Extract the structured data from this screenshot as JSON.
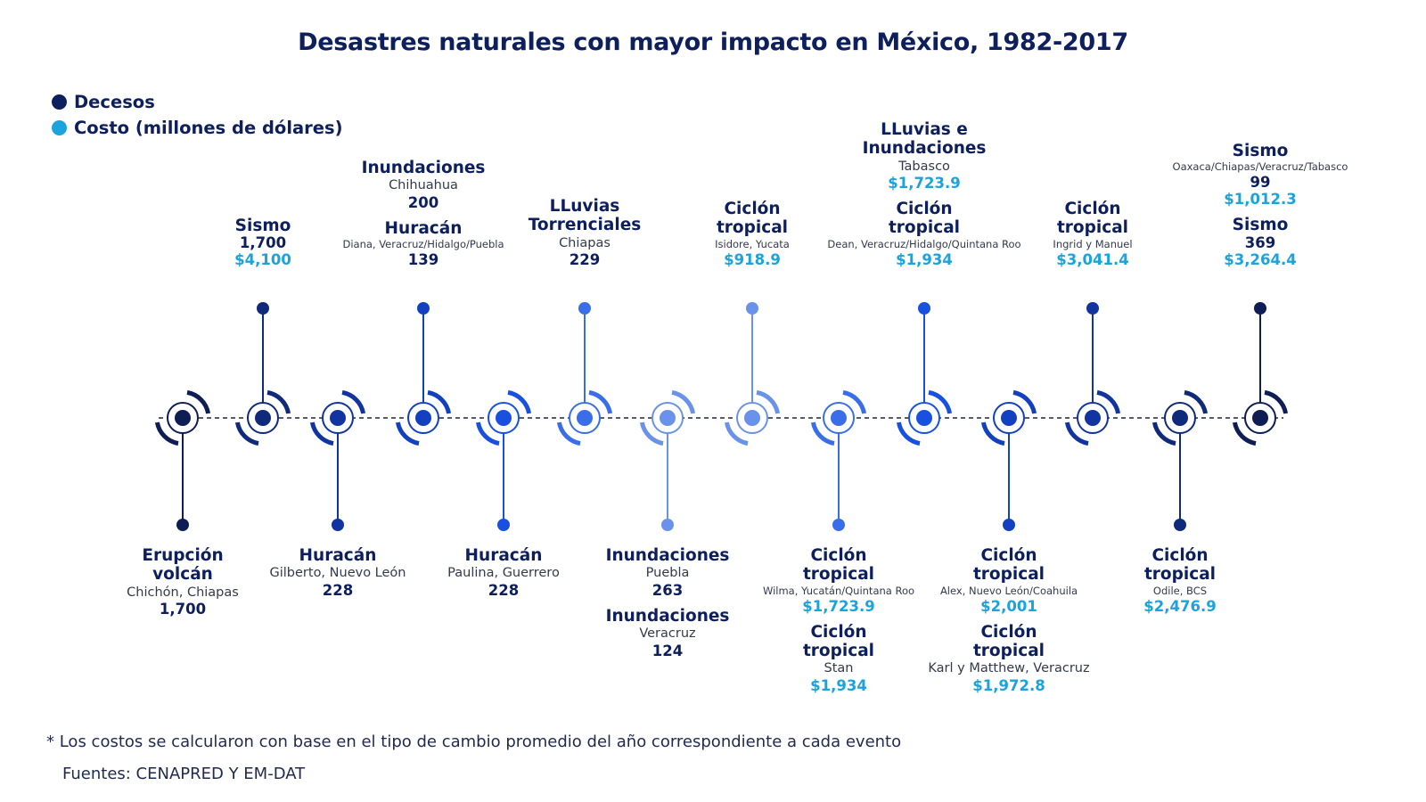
{
  "title": "Desastres naturales con mayor impacto en México, 1982-2017",
  "legend": [
    {
      "label": "Decesos",
      "color": "#0d1f5c"
    },
    {
      "label": "Costo (millones de dólares)",
      "color": "#1aa3dc"
    }
  ],
  "colors": {
    "death_text": "#0d1f5c",
    "cost_text": "#1aa3dc",
    "axis": "#555b6e"
  },
  "events": [
    {
      "side": "below",
      "color": "#0e1d54",
      "entries": [
        {
          "type": "Erupción\nvolcán",
          "place": "Chichón, Chiapas",
          "deaths": "1,700"
        }
      ]
    },
    {
      "side": "above",
      "color": "#0f2a7a",
      "entries": [
        {
          "type": "Sismo",
          "deaths": "1,700",
          "cost": "$4,100"
        }
      ]
    },
    {
      "side": "below",
      "color": "#1234a0",
      "entries": [
        {
          "type": "Huracán",
          "place": "Gilberto, Nuevo León",
          "deaths": "228"
        }
      ]
    },
    {
      "side": "above",
      "color": "#1340c0",
      "entries": [
        {
          "type": "Inundaciones",
          "place": "Chihuahua",
          "deaths": "200"
        },
        {
          "type": "Huracán",
          "place": "Diana, Veracruz/Hidalgo/Puebla",
          "place_small": true,
          "deaths": "139"
        }
      ]
    },
    {
      "side": "below",
      "color": "#1850e0",
      "entries": [
        {
          "type": "Huracán",
          "place": "Paulina, Guerrero",
          "deaths": "228"
        }
      ]
    },
    {
      "side": "above",
      "color": "#3a6ee8",
      "entries": [
        {
          "type": "LLuvias\nTorrenciales",
          "place": "Chiapas",
          "deaths": "229"
        }
      ]
    },
    {
      "side": "below",
      "color": "#6a92ea",
      "entries": [
        {
          "type": "Inundaciones",
          "place": "Puebla",
          "deaths": "263"
        },
        {
          "type": "Inundaciones",
          "place": "Veracruz",
          "deaths": "124"
        }
      ]
    },
    {
      "side": "above",
      "color": "#6a92ea",
      "entries": [
        {
          "type": "Ciclón\ntropical",
          "place": "Isidore, Yucata",
          "place_small": true,
          "cost": "$918.9"
        }
      ]
    },
    {
      "side": "below",
      "color": "#3a6ee8",
      "entries": [
        {
          "type": "Ciclón\ntropical",
          "place": "Wilma, Yucatán/Quintana Roo",
          "place_small": true,
          "cost": "$1,723.9"
        },
        {
          "type": "Ciclón\ntropical",
          "place": "Stan",
          "cost": "$1,934"
        }
      ]
    },
    {
      "side": "above",
      "color": "#1850e0",
      "entries": [
        {
          "type": "LLuvias e\nInundaciones",
          "place": "Tabasco",
          "cost": "$1,723.9"
        },
        {
          "type": "Ciclón\ntropical",
          "place": "Dean, Veracruz/Hidalgo/Quintana Roo",
          "place_small": true,
          "cost": "$1,934"
        }
      ]
    },
    {
      "side": "below",
      "color": "#1340c0",
      "entries": [
        {
          "type": "Ciclón\ntropical",
          "place": "Alex, Nuevo León/Coahuila",
          "place_small": true,
          "cost": "$2,001"
        },
        {
          "type": "Ciclón\ntropical",
          "place": "Karl y Matthew, Veracruz",
          "cost": "$1,972.8"
        }
      ]
    },
    {
      "side": "above",
      "color": "#1234a0",
      "entries": [
        {
          "type": "Ciclón\ntropical",
          "place": "Ingrid y Manuel",
          "place_small": true,
          "cost": "$3,041.4"
        }
      ]
    },
    {
      "side": "below",
      "color": "#0f2a7a",
      "entries": [
        {
          "type": "Ciclón\ntropical",
          "place": "Odile, BCS",
          "place_small": true,
          "cost": "$2,476.9"
        }
      ]
    },
    {
      "side": "above",
      "color": "#0e1d54",
      "entries": [
        {
          "type": "Sismo",
          "place": "Oaxaca/Chiapas/Veracruz/Tabasco",
          "place_small": true,
          "deaths": "99",
          "cost": "$1,012.3"
        },
        {
          "type": "Sismo",
          "deaths": "369",
          "cost": "$3,264.4"
        }
      ]
    }
  ],
  "footnote": "* Los costos se calcularon con base en el tipo de cambio promedio del año correspondiente a cada evento",
  "sources": "Fuentes: CENAPRED Y EM-DAT"
}
